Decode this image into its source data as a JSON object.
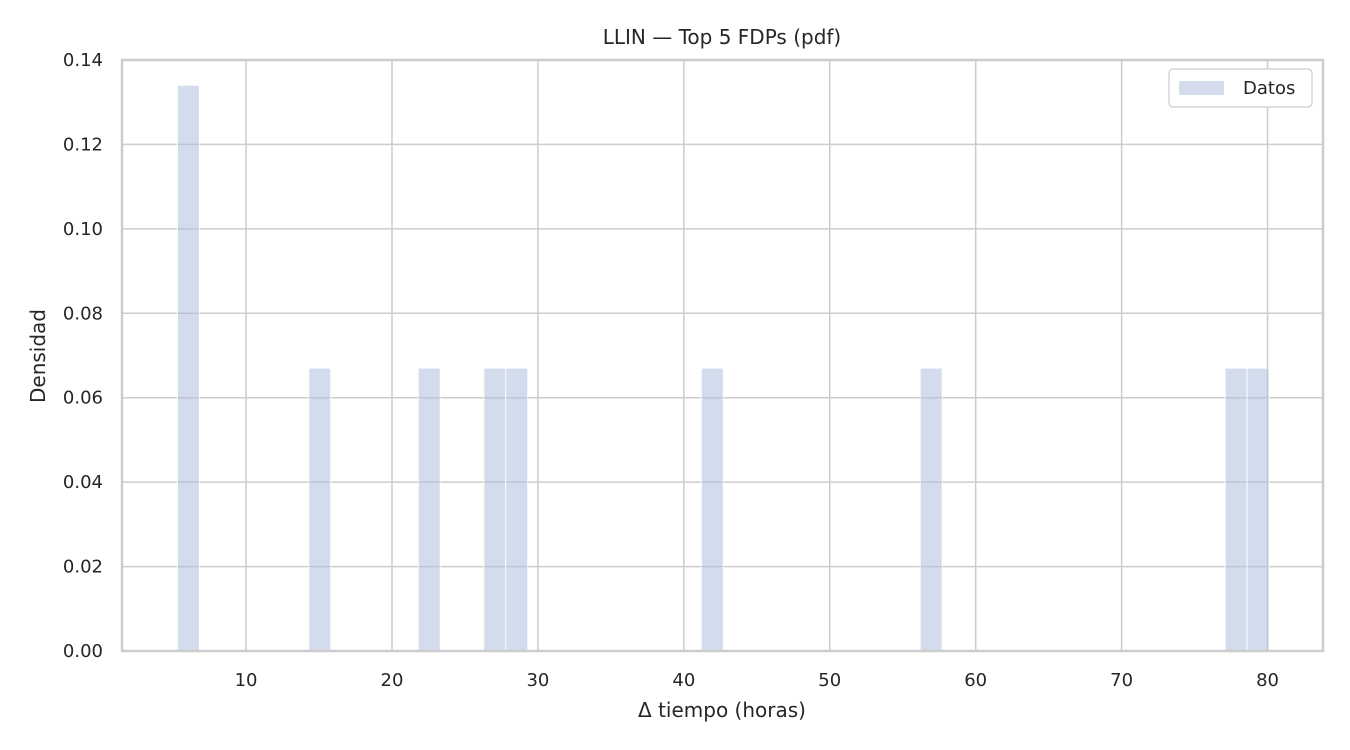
{
  "chart_data": {
    "type": "bar",
    "title": "LLIN — Top 5 FDPs (pdf)",
    "xlabel": "Δ tiempo (horas)",
    "ylabel": "Densidad",
    "xlim": [
      1.5,
      83.8
    ],
    "ylim": [
      0,
      0.14
    ],
    "xticks": [
      "10",
      "20",
      "30",
      "40",
      "50",
      "60",
      "70",
      "80"
    ],
    "yticks": [
      "0.00",
      "0.02",
      "0.04",
      "0.06",
      "0.08",
      "0.10",
      "0.12",
      "0.14"
    ],
    "grid": true,
    "legend": {
      "placement": "top-right",
      "entries": [
        "Datos"
      ]
    },
    "bar_color": "#aebfdf",
    "series": [
      {
        "name": "Datos",
        "bins": [
          {
            "x0": 5.3,
            "x1": 6.8,
            "value": 0.134
          },
          {
            "x0": 14.3,
            "x1": 15.8,
            "value": 0.067
          },
          {
            "x0": 21.8,
            "x1": 23.3,
            "value": 0.067
          },
          {
            "x0": 26.3,
            "x1": 27.8,
            "value": 0.067
          },
          {
            "x0": 27.8,
            "x1": 29.3,
            "value": 0.067
          },
          {
            "x0": 41.2,
            "x1": 42.7,
            "value": 0.067
          },
          {
            "x0": 56.2,
            "x1": 57.7,
            "value": 0.067
          },
          {
            "x0": 77.1,
            "x1": 78.6,
            "value": 0.067
          },
          {
            "x0": 78.6,
            "x1": 80.1,
            "value": 0.067
          }
        ]
      }
    ]
  }
}
